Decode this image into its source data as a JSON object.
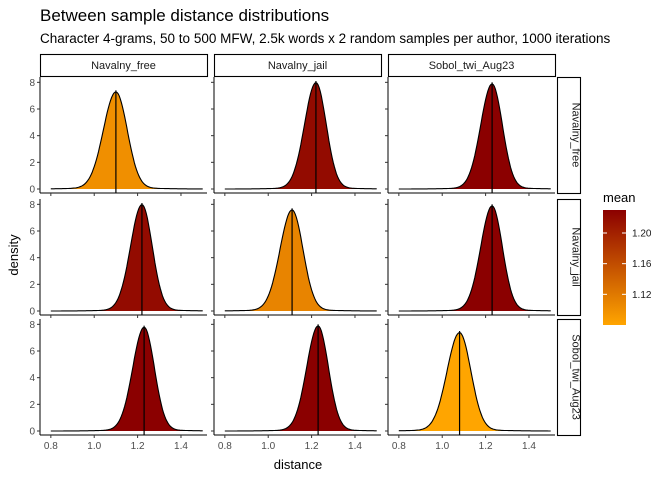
{
  "chart_data": {
    "type": "area",
    "title": "Between sample distance distributions",
    "subtitle": "Character 4-grams, 50 to 500 MFW, 2.5k words x 2 random samples per author, 1000 iterations",
    "xlabel": "distance",
    "ylabel": "density",
    "xlim": [
      0.75,
      1.52
    ],
    "ylim": [
      -0.3,
      8.4
    ],
    "xticks": [
      0.8,
      1.0,
      1.2,
      1.4
    ],
    "xtick_labels": [
      "0.8",
      "1.0",
      "1.2",
      "1.4"
    ],
    "yticks": [
      0,
      2,
      4,
      6,
      8
    ],
    "ytick_labels": [
      "0",
      "2",
      "4",
      "6",
      "8"
    ],
    "facet_cols": [
      "Navalny_free",
      "Navalny_jail",
      "Sobol_twi_Aug23"
    ],
    "facet_rows": [
      "Navalny_free",
      "Navalny_jail",
      "Sobol_twi_Aug23"
    ],
    "legend": {
      "title": "mean",
      "position": "right",
      "range": [
        1.08,
        1.23
      ],
      "ticks": [
        1.12,
        1.16,
        1.2
      ],
      "tick_labels": [
        "1.12",
        "1.16",
        "1.20"
      ],
      "low_color": "#FFA500",
      "high_color": "#8B0000"
    },
    "grid": false,
    "panels": [
      {
        "row": "Navalny_free",
        "col": "Navalny_free",
        "mean": 1.1,
        "peak": 7.2,
        "sd": 0.055
      },
      {
        "row": "Navalny_free",
        "col": "Navalny_jail",
        "mean": 1.22,
        "peak": 7.9,
        "sd": 0.05
      },
      {
        "row": "Navalny_free",
        "col": "Sobol_twi_Aug23",
        "mean": 1.23,
        "peak": 7.8,
        "sd": 0.05
      },
      {
        "row": "Navalny_jail",
        "col": "Navalny_free",
        "mean": 1.22,
        "peak": 7.9,
        "sd": 0.05
      },
      {
        "row": "Navalny_jail",
        "col": "Navalny_jail",
        "mean": 1.11,
        "peak": 7.5,
        "sd": 0.053
      },
      {
        "row": "Navalny_jail",
        "col": "Sobol_twi_Aug23",
        "mean": 1.23,
        "peak": 7.8,
        "sd": 0.05
      },
      {
        "row": "Sobol_twi_Aug23",
        "col": "Navalny_free",
        "mean": 1.23,
        "peak": 7.7,
        "sd": 0.05
      },
      {
        "row": "Sobol_twi_Aug23",
        "col": "Navalny_jail",
        "mean": 1.23,
        "peak": 7.8,
        "sd": 0.05
      },
      {
        "row": "Sobol_twi_Aug23",
        "col": "Sobol_twi_Aug23",
        "mean": 1.08,
        "peak": 7.3,
        "sd": 0.055
      }
    ]
  }
}
